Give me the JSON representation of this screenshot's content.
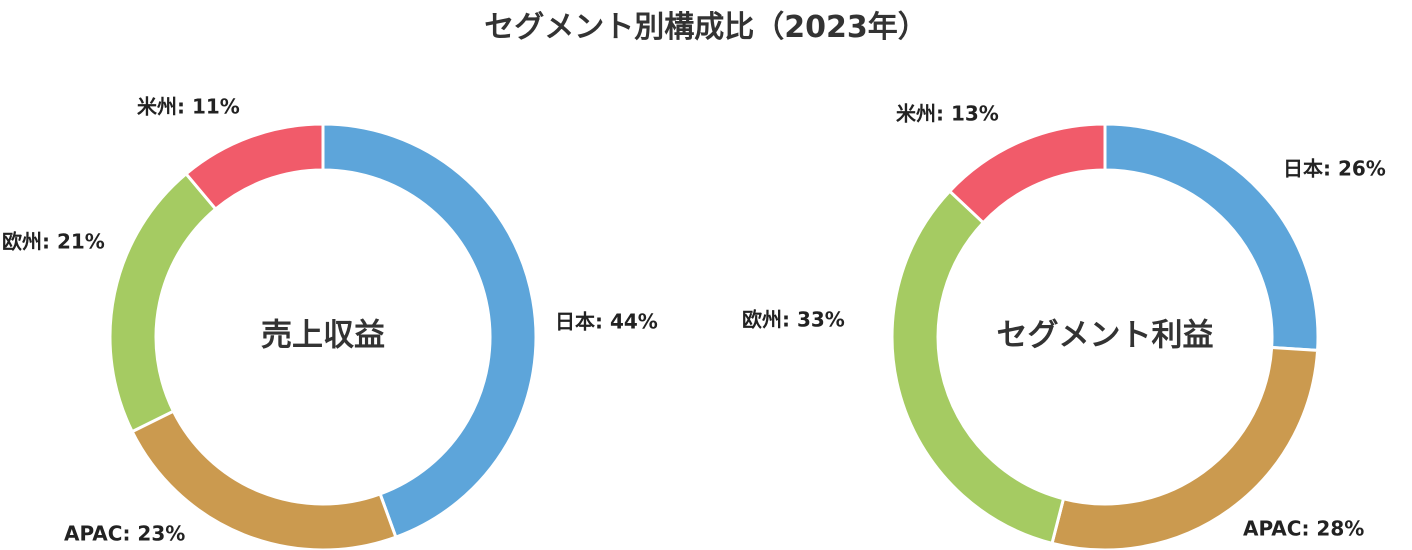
{
  "title": "セグメント別構成比（2023年）",
  "colors": {
    "日本": "#5DA5DA",
    "APAC": "#CB9A4F",
    "欧州": "#A5CB62",
    "米州": "#F15B6A"
  },
  "chart_data": [
    {
      "type": "pie",
      "center_label": "売上収益",
      "slices": [
        {
          "category": "日本",
          "value": 44,
          "label": "日本: 44%"
        },
        {
          "category": "APAC",
          "value": 23,
          "label": "APAC: 23%"
        },
        {
          "category": "欧州",
          "value": 21,
          "label": "欧州: 21%"
        },
        {
          "category": "米州",
          "value": 11,
          "label": "米州: 11%"
        }
      ]
    },
    {
      "type": "pie",
      "center_label": "セグメント利益",
      "slices": [
        {
          "category": "日本",
          "value": 26,
          "label": "日本: 26%"
        },
        {
          "category": "APAC",
          "value": 28,
          "label": "APAC: 28%"
        },
        {
          "category": "欧州",
          "value": 33,
          "label": "欧州: 33%"
        },
        {
          "category": "米州",
          "value": 13,
          "label": "米州: 13%"
        }
      ]
    }
  ]
}
